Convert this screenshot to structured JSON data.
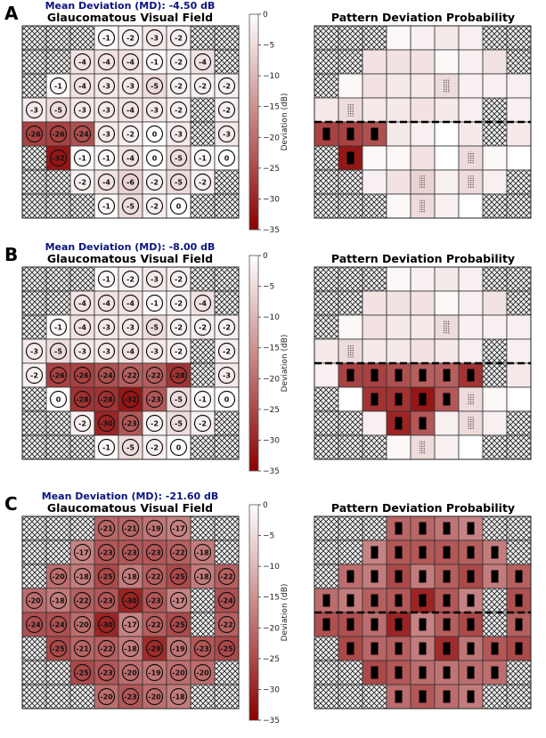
{
  "chart_data": [
    {
      "type": "heatmap",
      "panel_label": "A",
      "md_title": "Mean Deviation (MD): -4.50 dB",
      "left_title": "Glaucomatous Visual Field",
      "right_title": "Pattern Deviation Probability",
      "colorbar_label": "Deviation (dB)",
      "colorbar_range": [
        -35,
        0
      ],
      "colorbar_ticks": [
        "0",
        "−5",
        "−10",
        "−15",
        "−20",
        "−25",
        "−30",
        "−35"
      ],
      "values": [
        [
          null,
          null,
          null,
          -1,
          -2,
          -3,
          -2,
          null,
          null
        ],
        [
          null,
          null,
          -4,
          -4,
          -4,
          -1,
          -2,
          -4,
          null
        ],
        [
          null,
          -1,
          -4,
          -3,
          -3,
          -5,
          -2,
          -2,
          -2
        ],
        [
          -3,
          -5,
          -3,
          -3,
          -4,
          -3,
          -2,
          null,
          -2
        ],
        [
          -26,
          -26,
          -24,
          -3,
          -2,
          0,
          -3,
          null,
          -3
        ],
        [
          null,
          -32,
          -1,
          -1,
          -4,
          0,
          -5,
          -1,
          0
        ],
        [
          null,
          null,
          -2,
          -4,
          -6,
          -2,
          -5,
          -2,
          null
        ],
        [
          null,
          null,
          null,
          -1,
          -5,
          -2,
          0,
          null,
          null
        ]
      ]
    },
    {
      "type": "heatmap",
      "panel_label": "B",
      "md_title": "Mean Deviation (MD): -8.00 dB",
      "left_title": "Glaucomatous Visual Field",
      "right_title": "Pattern Deviation Probability",
      "colorbar_label": "Deviation (dB)",
      "colorbar_range": [
        -35,
        0
      ],
      "colorbar_ticks": [
        "0",
        "−5",
        "−10",
        "−15",
        "−20",
        "−25",
        "−30",
        "−35"
      ],
      "values": [
        [
          null,
          null,
          null,
          -1,
          -2,
          -3,
          -2,
          null,
          null
        ],
        [
          null,
          null,
          -4,
          -4,
          -4,
          -1,
          -2,
          -4,
          null
        ],
        [
          null,
          -1,
          -4,
          -3,
          -3,
          -5,
          -2,
          -2,
          -2
        ],
        [
          -3,
          -5,
          -3,
          -3,
          -4,
          -3,
          -2,
          null,
          -2
        ],
        [
          -2,
          -26,
          -26,
          -24,
          -22,
          -22,
          -28,
          null,
          -3
        ],
        [
          null,
          0,
          -28,
          -28,
          -32,
          -23,
          -5,
          -1,
          0
        ],
        [
          null,
          null,
          -2,
          -30,
          -23,
          -2,
          -5,
          -2,
          null
        ],
        [
          null,
          null,
          null,
          -1,
          -5,
          -2,
          0,
          null,
          null
        ]
      ]
    },
    {
      "type": "heatmap",
      "panel_label": "C",
      "md_title": "Mean Deviation (MD): -21.60 dB",
      "left_title": "Glaucomatous Visual Field",
      "right_title": "Pattern Deviation Probability",
      "colorbar_label": "Deviation (dB)",
      "colorbar_range": [
        -35,
        0
      ],
      "colorbar_ticks": [
        "0",
        "−5",
        "−10",
        "−15",
        "−20",
        "−25",
        "−30",
        "−35"
      ],
      "values": [
        [
          null,
          null,
          null,
          -21,
          -21,
          -19,
          -17,
          null,
          null
        ],
        [
          null,
          null,
          -17,
          -23,
          -23,
          -23,
          -22,
          -18,
          null
        ],
        [
          null,
          -20,
          -18,
          -25,
          -18,
          -22,
          -25,
          -18,
          -22
        ],
        [
          -20,
          -18,
          -22,
          -23,
          -30,
          -23,
          -17,
          null,
          -24
        ],
        [
          -24,
          -24,
          -20,
          -30,
          -17,
          -22,
          -25,
          null,
          -22
        ],
        [
          null,
          -25,
          -21,
          -22,
          -18,
          -29,
          -19,
          -23,
          -25
        ],
        [
          null,
          null,
          -25,
          -23,
          -20,
          -19,
          -20,
          -20,
          null
        ],
        [
          null,
          null,
          null,
          -20,
          -23,
          -20,
          -18,
          null,
          null
        ]
      ]
    }
  ],
  "colors": {
    "zero": "#ffffff",
    "min": "#8b0000",
    "md_title": "#0a1580",
    "masked_fill": "#eeeeee"
  },
  "probability_symbols": {
    "dotted_at_or_below_db": -5,
    "solid_black_at_or_below_db": -10
  },
  "masked_cell_style": "crosshatch",
  "horizontal_meridian": "dashed line between rows 4 and 5"
}
